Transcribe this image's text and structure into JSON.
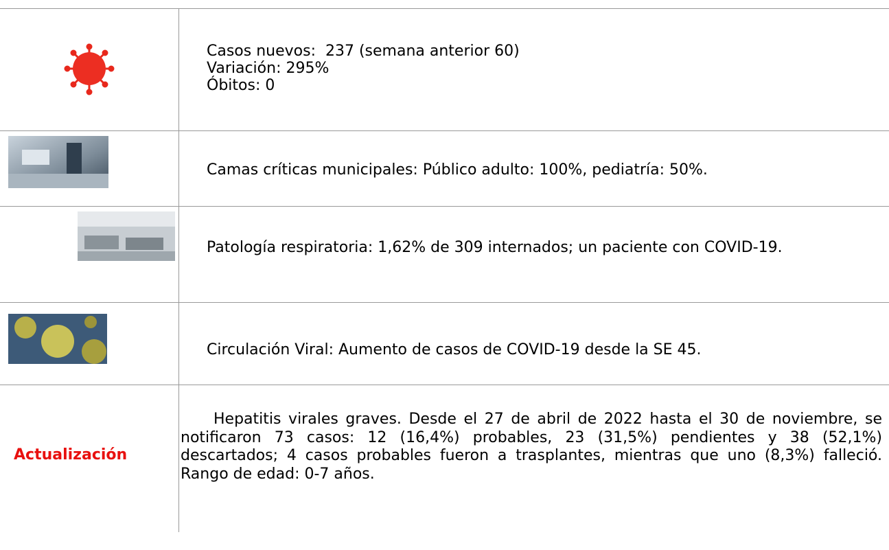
{
  "rows": [
    {
      "lines": [
        "Casos nuevos:  237 (semana anterior 60)",
        "Variación: 295%",
        "Óbitos: 0"
      ]
    },
    {
      "text": "Camas críticas municipales: Público adulto: 100%, pediatría: 50%."
    },
    {
      "text": "Patología respiratoria: 1,62% de  309 internados; un paciente con COVID-19."
    },
    {
      "text": "Circulación Viral: Aumento de casos de COVID-19 desde la SE 45."
    },
    {
      "label": "Actualización",
      "text": "Hepatitis virales graves. Desde el 27 de abril de 2022 hasta el 30 de noviembre, se notificaron 73 casos:  12 (16,4%) probables, 23 (31,5%) pendientes y 38 (52,1%) descartados; 4 casos probables fueron a trasplantes, mientras que uno (8,3%) falleció. Rango de edad: 0-7 años."
    }
  ]
}
